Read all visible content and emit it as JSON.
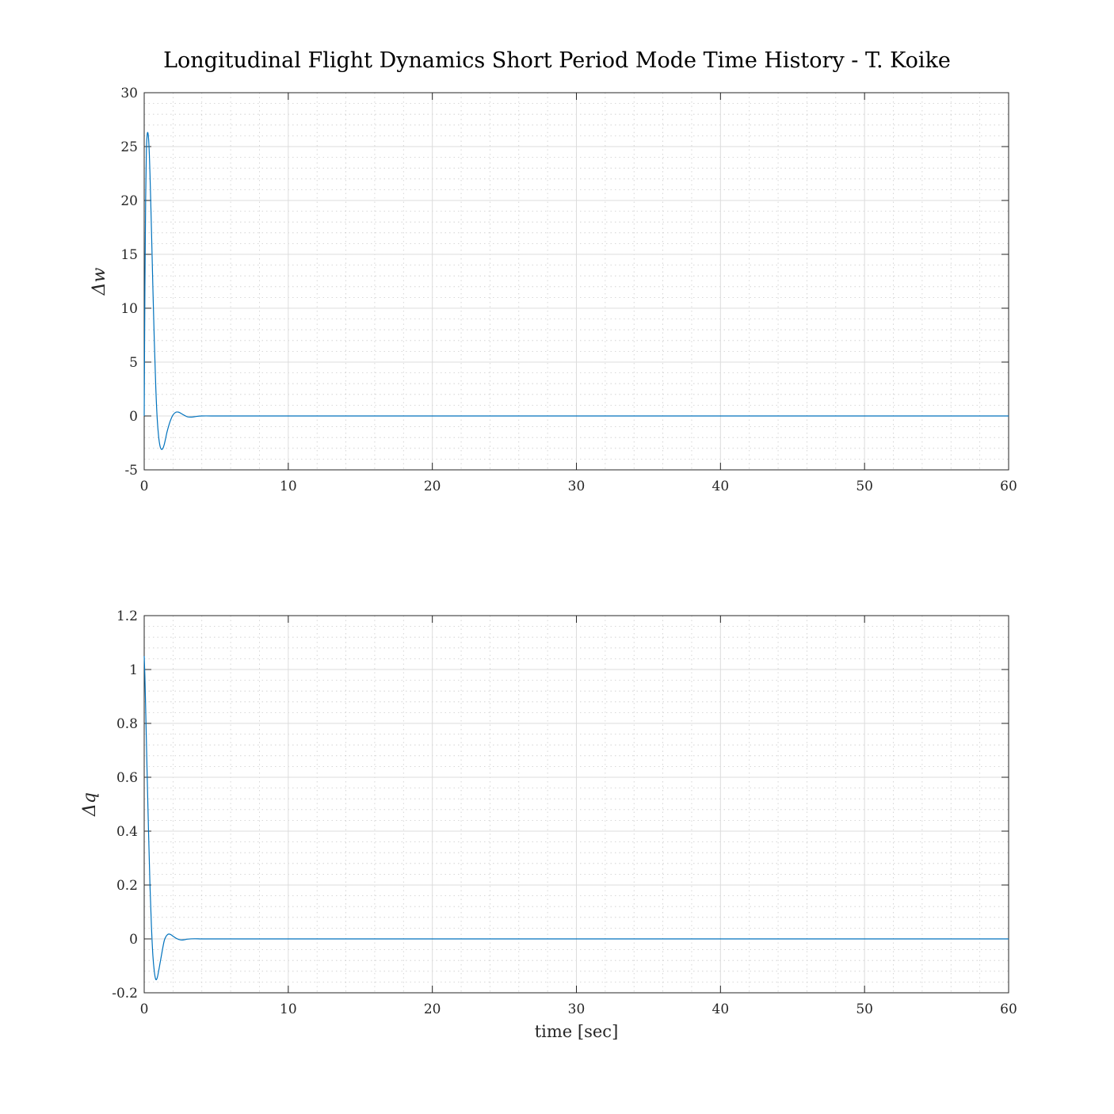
{
  "figure": {
    "title": "Longitudinal Flight Dynamics Short Period Mode Time History - T. Koike"
  },
  "chart_data": [
    {
      "type": "line",
      "title": "",
      "xlabel": "",
      "ylabel": "Δw",
      "xlim": [
        0,
        60
      ],
      "ylim": [
        -5,
        30
      ],
      "xticks": [
        0,
        10,
        20,
        30,
        40,
        50,
        60
      ],
      "yticks": [
        -5,
        0,
        5,
        10,
        15,
        20,
        25,
        30
      ],
      "xtick_labels": [
        "0",
        "10",
        "20",
        "30",
        "40",
        "50",
        "60"
      ],
      "ytick_labels": [
        "-5",
        "0",
        "5",
        "10",
        "15",
        "20",
        "25",
        "30"
      ],
      "grid": true,
      "minor_grid": true,
      "series": [
        {
          "color": "#0072bd",
          "x": [
            0,
            0.05,
            0.1,
            0.15,
            0.2,
            0.25,
            0.3,
            0.35,
            0.4,
            0.5,
            0.6,
            0.7,
            0.8,
            0.9,
            1.0,
            1.1,
            1.2,
            1.3,
            1.4,
            1.5,
            1.6,
            1.8,
            2.0,
            2.2,
            2.4,
            2.6,
            2.8,
            3.0,
            3.3,
            3.6,
            4.0,
            5.0,
            6.0,
            10,
            20,
            30,
            40,
            50,
            60
          ],
          "y": [
            0,
            12.0,
            20.0,
            24.5,
            26.0,
            26.3,
            25.8,
            24.5,
            22.5,
            17.5,
            12.0,
            7.0,
            2.8,
            -0.2,
            -1.9,
            -2.8,
            -3.1,
            -3.0,
            -2.6,
            -2.0,
            -1.4,
            -0.5,
            0.1,
            0.35,
            0.35,
            0.2,
            0.05,
            -0.08,
            -0.1,
            -0.05,
            0,
            0,
            0,
            0,
            0,
            0,
            0,
            0,
            0
          ]
        }
      ]
    },
    {
      "type": "line",
      "title": "",
      "xlabel": "time [sec]",
      "ylabel": "Δq",
      "xlim": [
        0,
        60
      ],
      "ylim": [
        -0.2,
        1.2
      ],
      "xticks": [
        0,
        10,
        20,
        30,
        40,
        50,
        60
      ],
      "yticks": [
        -0.2,
        0,
        0.2,
        0.4,
        0.6,
        0.8,
        1,
        1.2
      ],
      "xtick_labels": [
        "0",
        "10",
        "20",
        "30",
        "40",
        "50",
        "60"
      ],
      "ytick_labels": [
        "-0.2",
        "0",
        "0.2",
        "0.4",
        "0.6",
        "0.8",
        "1",
        "1.2"
      ],
      "grid": true,
      "minor_grid": true,
      "series": [
        {
          "color": "#0072bd",
          "x": [
            0,
            0.05,
            0.1,
            0.15,
            0.2,
            0.3,
            0.4,
            0.5,
            0.6,
            0.7,
            0.8,
            0.9,
            1.0,
            1.1,
            1.2,
            1.3,
            1.4,
            1.5,
            1.6,
            1.7,
            1.8,
            1.9,
            2.0,
            2.2,
            2.4,
            2.6,
            2.8,
            3.0,
            3.5,
            4.0,
            5.0,
            10,
            20,
            30,
            40,
            50,
            60
          ],
          "y": [
            1.05,
            0.97,
            0.86,
            0.74,
            0.62,
            0.4,
            0.2,
            0.05,
            -0.06,
            -0.12,
            -0.15,
            -0.145,
            -0.12,
            -0.09,
            -0.06,
            -0.03,
            -0.005,
            0.008,
            0.015,
            0.018,
            0.017,
            0.014,
            0.01,
            0.003,
            -0.002,
            -0.004,
            -0.003,
            -0.001,
            0.0005,
            0,
            0,
            0,
            0,
            0,
            0,
            0,
            0
          ]
        }
      ]
    }
  ]
}
